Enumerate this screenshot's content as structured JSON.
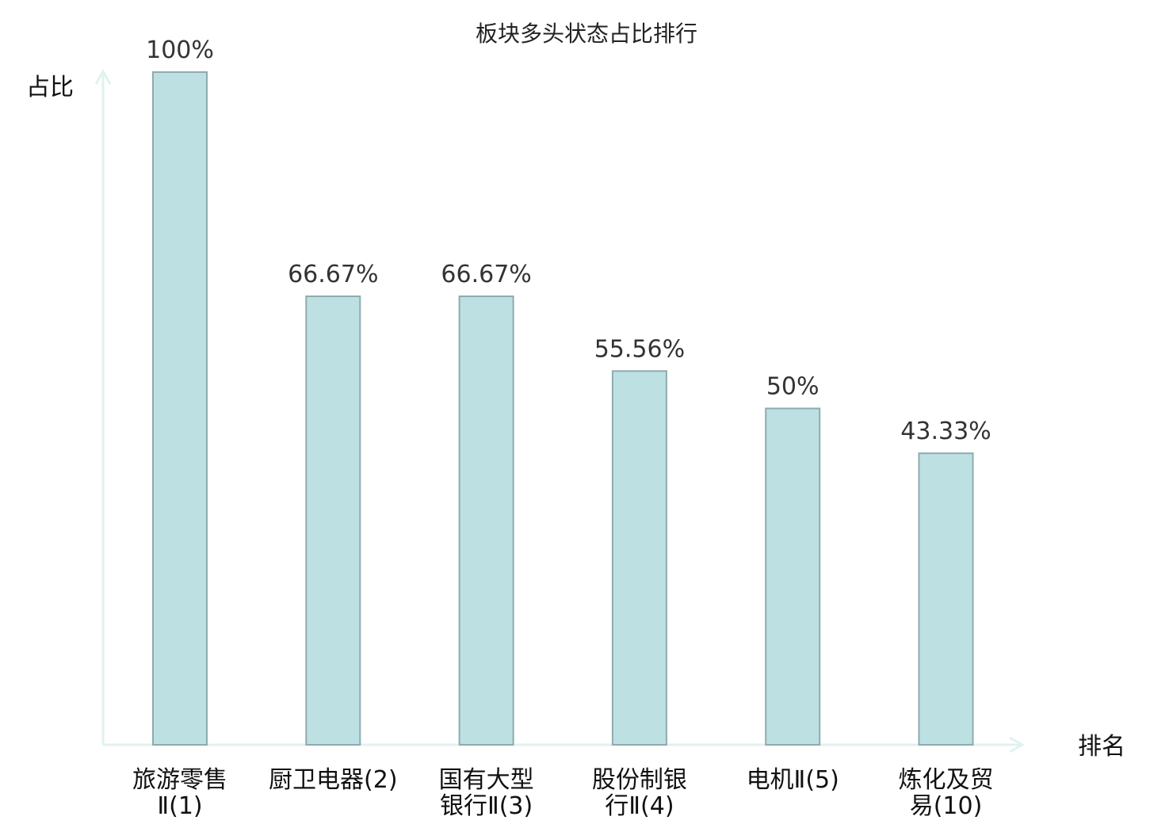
{
  "chart_data": {
    "type": "bar",
    "title": "板块多头状态占比排行",
    "ylabel": "占比",
    "xlabel": "排名",
    "ylim": [
      0,
      100
    ],
    "grid": false,
    "categories": [
      [
        "旅游零售",
        "Ⅱ(1)"
      ],
      [
        "厨卫电器(2)"
      ],
      [
        "国有大型",
        "银行Ⅱ(3)"
      ],
      [
        "股份制银",
        "行Ⅱ(4)"
      ],
      [
        "电机Ⅱ(5)"
      ],
      [
        "炼化及贸",
        "易(10)"
      ]
    ],
    "values": [
      100,
      66.67,
      66.67,
      55.56,
      50,
      43.33
    ],
    "value_labels": [
      "100%",
      "66.67%",
      "66.67%",
      "55.56%",
      "50%",
      "43.33%"
    ],
    "highlight_index": 5,
    "colors": {
      "bar_fill": "#bde0e3",
      "bar_stroke": "#8fabaf",
      "axis": "#e0f2ef",
      "highlight_text": "#e31a1c",
      "text": "#111111"
    }
  }
}
